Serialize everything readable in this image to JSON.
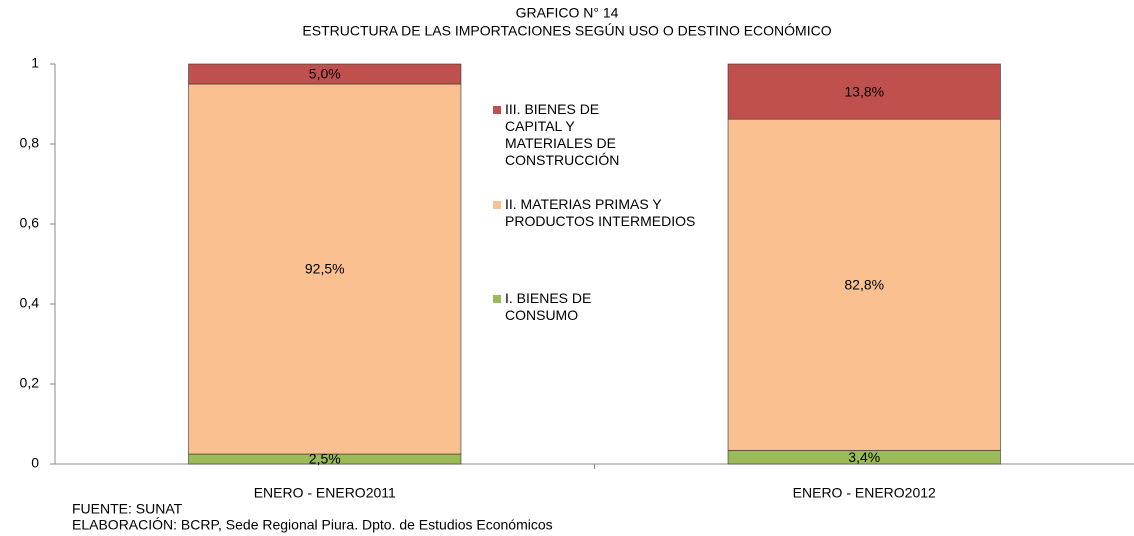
{
  "chart_data": {
    "type": "stacked_bar",
    "title": "GRAFICO N° 14",
    "subtitle": "ESTRUCTURA DE LAS IMPORTACIONES SEGÚN USO O DESTINO ECONÓMICO",
    "categories": [
      "ENERO - ENERO2011",
      "ENERO - ENERO2012"
    ],
    "series": [
      {
        "name": "I. BIENES DE CONSUMO",
        "color": "#9bbb59",
        "values": [
          0.025,
          0.034
        ],
        "value_labels": [
          "2,5%",
          "3,4%"
        ]
      },
      {
        "name": "II. MATERIAS PRIMAS Y PRODUCTOS INTERMEDIOS",
        "color": "#fac090",
        "values": [
          0.925,
          0.828
        ],
        "value_labels": [
          "92,5%",
          "82,8%"
        ]
      },
      {
        "name": "III. BIENES DE CAPITAL Y MATERIALES DE CONSTRUCCIÓN",
        "color": "#c0504d",
        "values": [
          0.05,
          0.138
        ],
        "value_labels": [
          "5,0%",
          "13,8%"
        ]
      }
    ],
    "ylim": [
      0,
      1
    ],
    "yticks": [
      0,
      {
        "value": 0.2,
        "label": "0,2"
      },
      {
        "value": 0.4,
        "label": "0,4"
      },
      {
        "value": 0.6,
        "label": "0,6"
      },
      {
        "value": 0.8,
        "label": "0,8"
      },
      1
    ],
    "legend": "center",
    "source": "FUENTE: SUNAT",
    "credit": "ELABORACIÓN: BCRP, Sede Regional Piura. Dpto. de Estudios Económicos"
  }
}
